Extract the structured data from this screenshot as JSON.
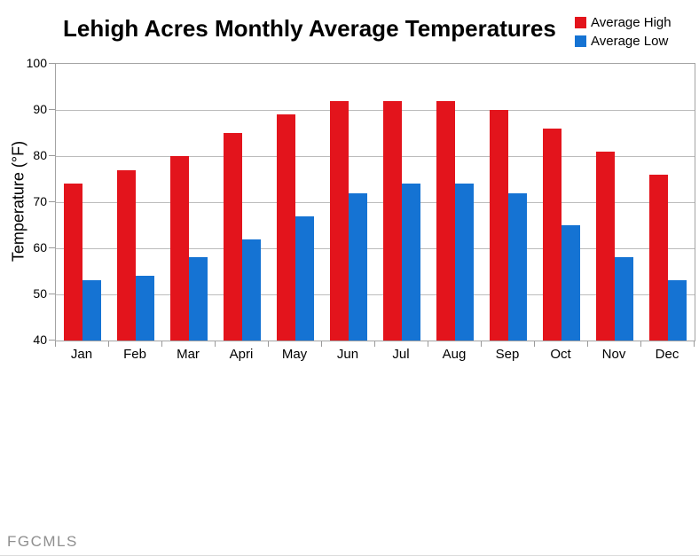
{
  "chart_data": {
    "type": "bar",
    "title": "Lehigh Acres Monthly Average Temperatures",
    "ylabel": "Temperature (°F)",
    "xlabel": "",
    "categories": [
      "Jan",
      "Feb",
      "Mar",
      "Apri",
      "May",
      "Jun",
      "Jul",
      "Aug",
      "Sep",
      "Oct",
      "Nov",
      "Dec"
    ],
    "series": [
      {
        "name": "Average High",
        "color": "#e3141c",
        "values": [
          74,
          77,
          80,
          85,
          89,
          92,
          92,
          92,
          90,
          86,
          81,
          76
        ]
      },
      {
        "name": "Average Low",
        "color": "#1573d3",
        "values": [
          53,
          54,
          58,
          62,
          67,
          72,
          74,
          74,
          72,
          65,
          58,
          53
        ]
      }
    ],
    "ylim": [
      40,
      100
    ],
    "yticks": [
      40,
      50,
      60,
      70,
      80,
      90,
      100
    ],
    "ytick_step": 10,
    "grid": true,
    "legend_position": "top-right"
  },
  "watermark": "FGCMLS"
}
